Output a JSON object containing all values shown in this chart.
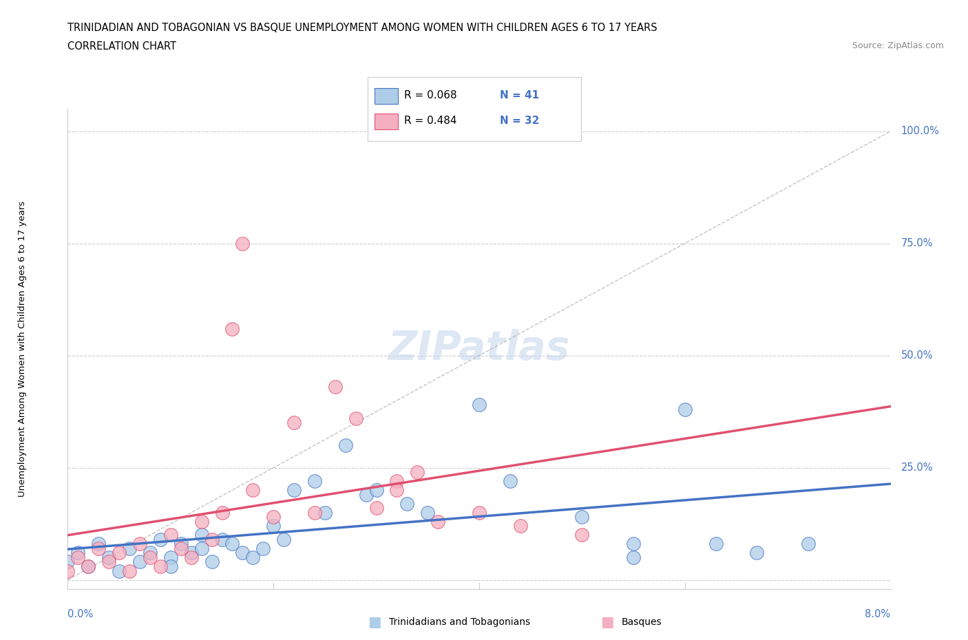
{
  "title_line1": "TRINIDADIAN AND TOBAGONIAN VS BASQUE UNEMPLOYMENT AMONG WOMEN WITH CHILDREN AGES 6 TO 17 YEARS",
  "title_line2": "CORRELATION CHART",
  "source_text": "Source: ZipAtlas.com",
  "color_blue": "#aecde8",
  "color_pink": "#f4afc0",
  "color_blue_text": "#4472c4",
  "color_pink_text": "#e05070",
  "color_blue_edge": "#4472c4",
  "color_pink_edge": "#e05070",
  "watermark_color": "#c8d8ee",
  "xmin": 0.0,
  "xmax": 0.08,
  "ymin": -0.02,
  "ymax": 1.05,
  "tnt_x": [
    0.0,
    0.001,
    0.002,
    0.003,
    0.004,
    0.005,
    0.006,
    0.007,
    0.008,
    0.009,
    0.01,
    0.01,
    0.011,
    0.012,
    0.013,
    0.013,
    0.014,
    0.015,
    0.016,
    0.017,
    0.018,
    0.019,
    0.02,
    0.021,
    0.022,
    0.024,
    0.025,
    0.027,
    0.029,
    0.03,
    0.033,
    0.035,
    0.04,
    0.043,
    0.05,
    0.055,
    0.055,
    0.06,
    0.063,
    0.067,
    0.072
  ],
  "tnt_y": [
    0.04,
    0.06,
    0.03,
    0.08,
    0.05,
    0.02,
    0.07,
    0.04,
    0.06,
    0.09,
    0.05,
    0.03,
    0.08,
    0.06,
    0.1,
    0.07,
    0.04,
    0.09,
    0.08,
    0.06,
    0.05,
    0.07,
    0.12,
    0.09,
    0.2,
    0.22,
    0.15,
    0.3,
    0.19,
    0.2,
    0.17,
    0.15,
    0.39,
    0.22,
    0.14,
    0.05,
    0.08,
    0.38,
    0.08,
    0.06,
    0.08
  ],
  "basque_x": [
    0.0,
    0.001,
    0.002,
    0.003,
    0.004,
    0.005,
    0.006,
    0.007,
    0.008,
    0.009,
    0.01,
    0.011,
    0.012,
    0.013,
    0.014,
    0.015,
    0.016,
    0.017,
    0.018,
    0.02,
    0.022,
    0.024,
    0.026,
    0.028,
    0.03,
    0.032,
    0.032,
    0.034,
    0.036,
    0.04,
    0.044,
    0.05
  ],
  "basque_y": [
    0.02,
    0.05,
    0.03,
    0.07,
    0.04,
    0.06,
    0.02,
    0.08,
    0.05,
    0.03,
    0.1,
    0.07,
    0.05,
    0.13,
    0.09,
    0.15,
    0.56,
    0.75,
    0.2,
    0.14,
    0.35,
    0.15,
    0.43,
    0.36,
    0.16,
    0.22,
    0.2,
    0.24,
    0.13,
    0.15,
    0.12,
    0.1
  ]
}
